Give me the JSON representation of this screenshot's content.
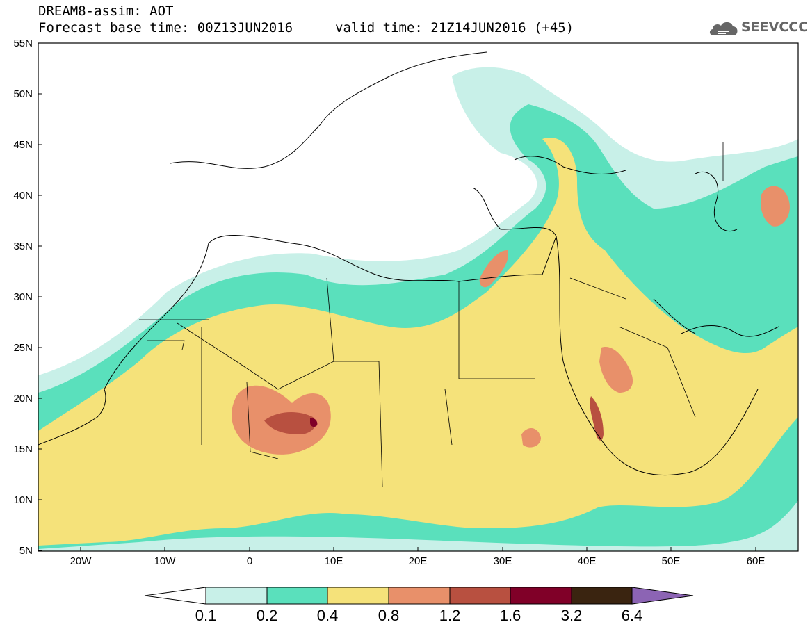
{
  "header": {
    "title": "DREAM8-assim: AOT",
    "base_time": "Forecast base time: 00Z13JUN2016",
    "valid_time": "valid time: 21Z14JUN2016 (+45)",
    "logo_text": "SEEVCCC",
    "logo_icon": "cloud-logo-icon"
  },
  "map": {
    "lat_range": [
      5,
      55
    ],
    "lon_range": [
      -25,
      65
    ],
    "lat_ticks": [
      "55N",
      "50N",
      "45N",
      "40N",
      "35N",
      "30N",
      "25N",
      "20N",
      "15N",
      "10N",
      "5N"
    ],
    "lon_ticks": [
      "20W",
      "10W",
      "0",
      "10E",
      "20E",
      "30E",
      "40E",
      "50E",
      "60E"
    ],
    "variable": "Aerosol optical thickness (dust)",
    "background": "#ffffff"
  },
  "colorbar": {
    "labels": [
      "0.1",
      "0.2",
      "0.4",
      "0.8",
      "1.2",
      "1.6",
      "3.2",
      "6.4"
    ],
    "colors": [
      "#ffffff",
      "#c8f0e8",
      "#5ae0bc",
      "#f5e27a",
      "#e8906a",
      "#b85040",
      "#800028",
      "#3a2410",
      "#8c64b4"
    ]
  }
}
